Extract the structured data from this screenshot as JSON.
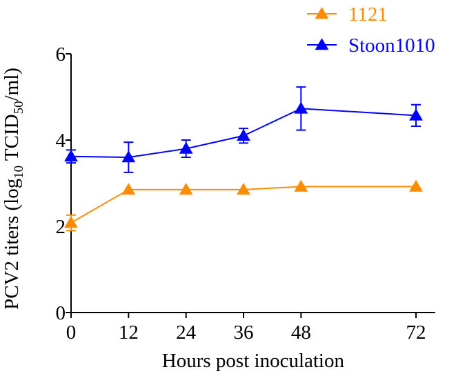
{
  "chart_data": {
    "type": "line",
    "title": "",
    "xlabel": "Hours post inoculation",
    "ylabel": {
      "prefix": "PCV2 titers (log",
      "sub1": "10",
      "middle": " TCID",
      "sub2": "50",
      "suffix": "/ml)"
    },
    "x": [
      0,
      12,
      24,
      36,
      48,
      72
    ],
    "x_ticks": [
      "0",
      "12",
      "24",
      "36",
      "48",
      "72"
    ],
    "xlim": [
      0,
      76
    ],
    "y_ticks": [
      "0",
      "2",
      "4",
      "6"
    ],
    "ylim": [
      0,
      6
    ],
    "grid": false,
    "legend_position": "top-right",
    "series": [
      {
        "name": "1121",
        "color": "#ff8c00",
        "marker": "triangle",
        "values": [
          2.08,
          2.85,
          2.85,
          2.85,
          2.92,
          2.92
        ],
        "errors": [
          0.18,
          0.0,
          0.0,
          0.0,
          0.0,
          0.0
        ]
      },
      {
        "name": "Stoon1010",
        "color": "#0000ff",
        "marker": "triangle",
        "values": [
          3.62,
          3.6,
          3.8,
          4.1,
          4.73,
          4.57
        ],
        "errors": [
          0.15,
          0.35,
          0.2,
          0.17,
          0.5,
          0.25
        ]
      }
    ]
  }
}
